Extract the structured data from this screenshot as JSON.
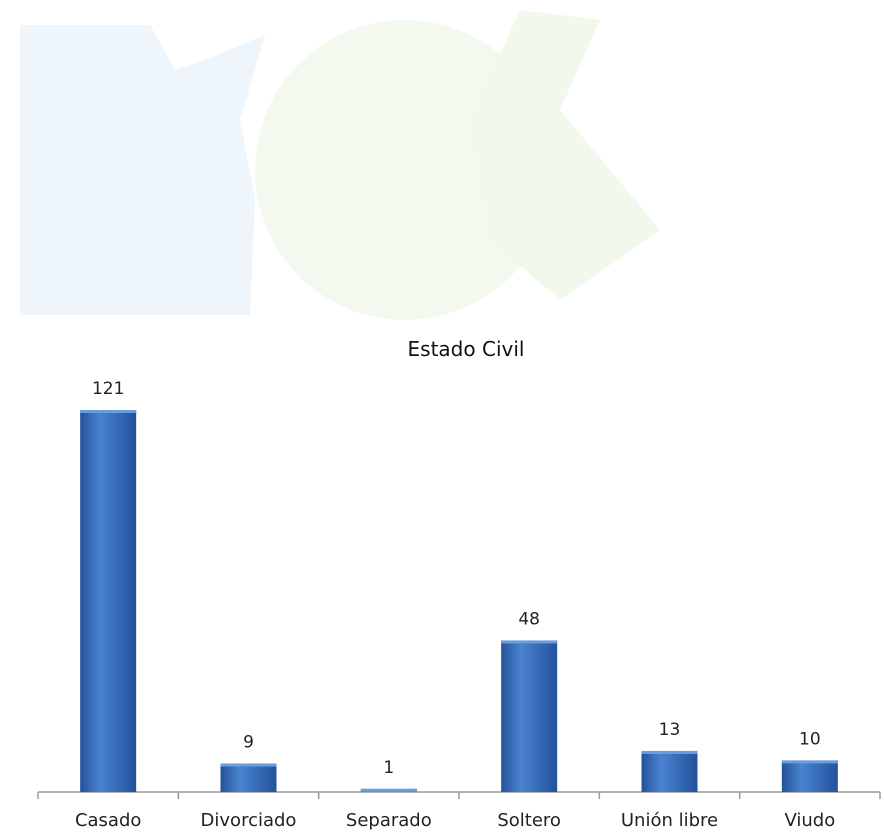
{
  "chart_data": {
    "type": "bar",
    "title": "Estado Civil",
    "categories": [
      "Casado",
      "Divorciado",
      "Separado",
      "Soltero",
      "Unión libre",
      "Viudo"
    ],
    "values": [
      121,
      9,
      1,
      48,
      13,
      10
    ],
    "xlabel": "",
    "ylabel": "",
    "ylim": [
      0,
      121
    ],
    "grid": false,
    "legend": "none",
    "data_labels": true,
    "bar_color": "#3a70bd"
  },
  "colors": {
    "bar_light": "#6a9ddc",
    "bar_mid": "#3a70bd",
    "bar_dark": "#24529a",
    "watermark_blue": "#eef5fb",
    "watermark_green": "#f3f9ef"
  }
}
